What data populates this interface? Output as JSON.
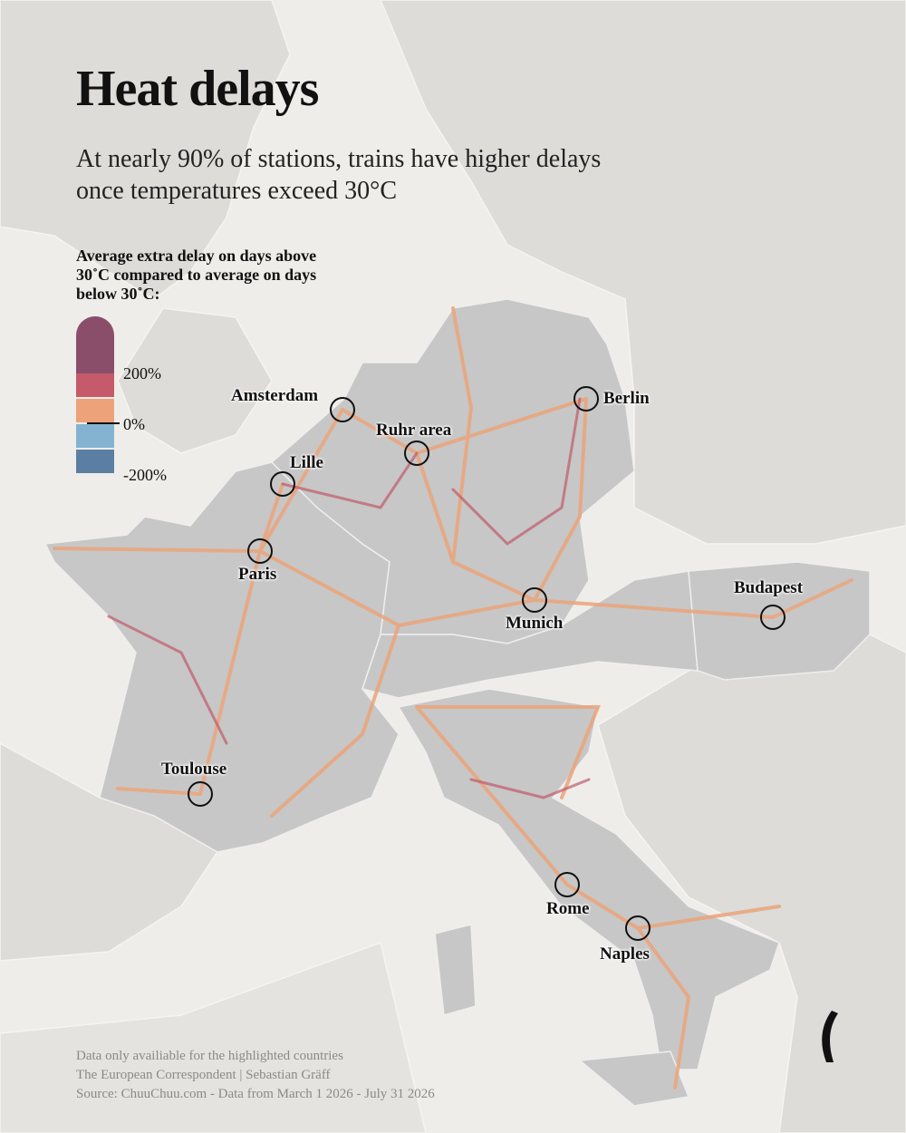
{
  "header": {
    "title": "Heat delays",
    "subtitle": "At nearly 90% of stations, trains have higher delays once temperatures exceed 30°C"
  },
  "legend": {
    "title": "Average extra delay on days above 30˚C compared to average on days below 30˚C:",
    "labels": [
      "200%",
      "0%",
      "-200%"
    ]
  },
  "cities": [
    "Amsterdam",
    "Ruhr area",
    "Berlin",
    "Lille",
    "Paris",
    "Munich",
    "Budapest",
    "Toulouse",
    "Rome",
    "Naples"
  ],
  "footer": [
    "Data only availiable for the highlighted countries",
    "The European Correspondent | Sebastian Gräff",
    "Source: ChuuChuu.com - Data from March 1 2026 - July 31 2026"
  ]
}
